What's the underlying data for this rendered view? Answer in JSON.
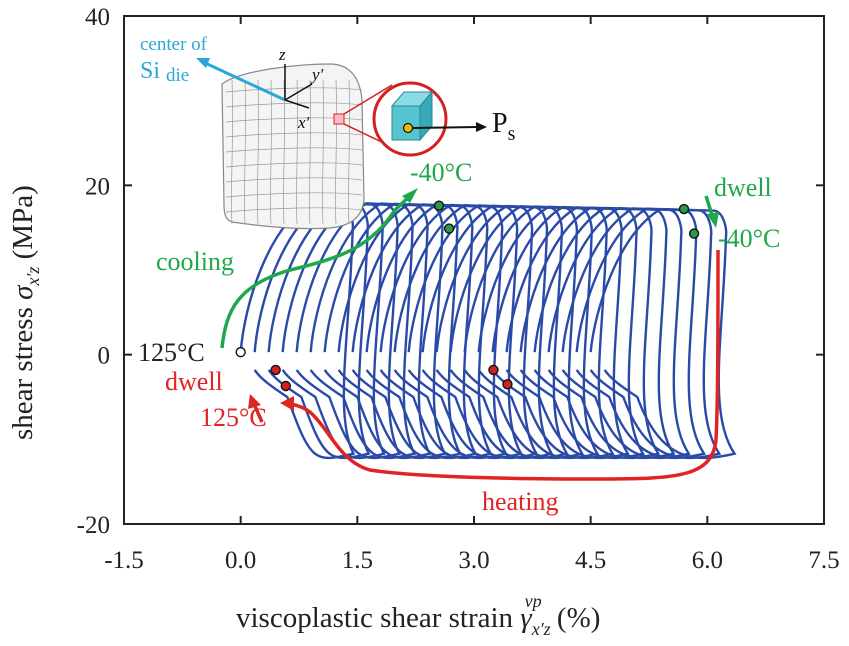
{
  "chart_data": {
    "type": "line",
    "title": "",
    "xlabel": "viscoplastic shear strain",
    "xlabel_symbol": "γ",
    "xlabel_sub": "x′z",
    "xlabel_sup": "vp",
    "xlabel_unit": "(%)",
    "ylabel": "shear stress",
    "ylabel_symbol": "σ",
    "ylabel_sub": "x′z",
    "ylabel_unit": "(MPa)",
    "xlim": [
      -1.5,
      7.5
    ],
    "ylim": [
      -20,
      40
    ],
    "xticks": [
      "-1.5",
      "0.0",
      "1.5",
      "3.0",
      "4.5",
      "6.0",
      "7.5"
    ],
    "yticks": [
      "-20",
      "0",
      "20",
      "40"
    ],
    "series": [
      {
        "name": "hysteresis loops",
        "color": "#2a4aa8",
        "cycles": 26,
        "strain_start": 0.0,
        "strain_step": 0.18,
        "stress_max": 18,
        "stress_min": -12.5
      }
    ],
    "points": [
      {
        "label": "start 125°C",
        "x": 0.0,
        "y": 0.3,
        "fill": "#ffffff"
      },
      {
        "label": "dwell 125°C start (1st)",
        "x": 0.45,
        "y": -1.8,
        "fill": "#d42020"
      },
      {
        "label": "dwell 125°C end (1st)",
        "x": 0.58,
        "y": -3.7,
        "fill": "#d42020"
      },
      {
        "label": "dwell 125°C start (mid)",
        "x": 3.25,
        "y": -1.8,
        "fill": "#d42020"
      },
      {
        "label": "dwell 125°C end (mid)",
        "x": 3.43,
        "y": -3.5,
        "fill": "#d42020"
      },
      {
        "label": "dwell -40°C start (1st)",
        "x": 2.55,
        "y": 17.6,
        "fill": "#2a9a48"
      },
      {
        "label": "dwell -40°C end (1st)",
        "x": 2.68,
        "y": 14.9,
        "fill": "#2a9a48"
      },
      {
        "label": "dwell -40°C start (last)",
        "x": 5.7,
        "y": 17.2,
        "fill": "#2a9a48"
      },
      {
        "label": "dwell -40°C end (last)",
        "x": 5.83,
        "y": 14.3,
        "fill": "#2a9a48"
      }
    ],
    "annotations": {
      "start_temp": "125°C",
      "cooling": "cooling",
      "cool_temp": "-40°C",
      "dwell_cold": "dwell",
      "dwell_cold_temp": "-40°C",
      "dwell_hot": "dwell",
      "dwell_hot_temp": "125°C",
      "heating": "heating"
    },
    "inset": {
      "center_label_line1": "center of",
      "center_label_line2_main": "Si",
      "center_label_line2_sub": "die",
      "axis_z": "z",
      "axis_y": "y′",
      "axis_x": "x′",
      "point_label": "P",
      "point_sub": "s"
    }
  },
  "colors": {
    "loops": "#2a4aa8",
    "cooling": "#1fa84a",
    "heating": "#e02424",
    "inset_label": "#2aa6d8",
    "axes": "#222222"
  }
}
